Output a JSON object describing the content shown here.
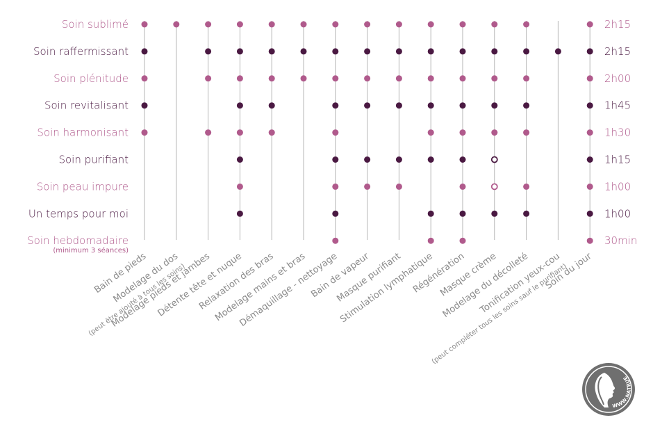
{
  "colors": {
    "pink": "#b05a8c",
    "dark": "#4a1942",
    "line": "#b4b4b4",
    "grey_text": "#8a8a8a",
    "logo_bg": "#6f6f6f"
  },
  "logo": {
    "text": "WWW.NATRUE.ORG",
    "icon": "woman-profile-icon"
  },
  "chart_data": {
    "type": "dot-matrix",
    "columns": [
      {
        "label": "Bain de pieds",
        "note": ""
      },
      {
        "label": "Modelage du dos",
        "note": "(peut être ajouté à tous les soins)"
      },
      {
        "label": "Modelage pieds et jambes",
        "note": ""
      },
      {
        "label": "Détente tête et nuque",
        "note": ""
      },
      {
        "label": "Relaxation des bras",
        "note": ""
      },
      {
        "label": "Modelage mains et bras",
        "note": ""
      },
      {
        "label": "Démaquillage - nettoyage",
        "note": ""
      },
      {
        "label": "Bain de vapeur",
        "note": ""
      },
      {
        "label": "Masque purifiant",
        "note": ""
      },
      {
        "label": "Stimulation lymphatique",
        "note": ""
      },
      {
        "label": "Régénération",
        "note": ""
      },
      {
        "label": "Masque crème",
        "note": ""
      },
      {
        "label": "Modelage du décolleté",
        "note": ""
      },
      {
        "label": "Tonification yeux-cou",
        "note": "(peut compléter tous les soins sauf le purifiant)"
      },
      {
        "label": "Soin du jour",
        "note": ""
      }
    ],
    "rows": [
      {
        "label": "Soin sublimé",
        "note": "",
        "duration": "2h15",
        "color": "pink",
        "dots": [
          1,
          1,
          1,
          1,
          1,
          1,
          1,
          1,
          1,
          1,
          1,
          1,
          1,
          0,
          1
        ]
      },
      {
        "label": "Soin raffermissant",
        "note": "",
        "duration": "2h15",
        "color": "dark",
        "dots": [
          1,
          0,
          1,
          1,
          1,
          1,
          1,
          1,
          1,
          1,
          1,
          1,
          1,
          1,
          1
        ]
      },
      {
        "label": "Soin plénitude",
        "note": "",
        "duration": "2h00",
        "color": "pink",
        "dots": [
          1,
          0,
          1,
          1,
          1,
          1,
          1,
          1,
          1,
          1,
          1,
          1,
          1,
          0,
          1
        ]
      },
      {
        "label": "Soin revitalisant",
        "note": "",
        "duration": "1h45",
        "color": "dark",
        "dots": [
          1,
          0,
          0,
          1,
          1,
          0,
          1,
          1,
          1,
          1,
          1,
          1,
          1,
          0,
          1
        ]
      },
      {
        "label": "Soin harmonisant",
        "note": "",
        "duration": "1h30",
        "color": "pink",
        "dots": [
          1,
          0,
          1,
          1,
          1,
          0,
          1,
          0,
          0,
          1,
          1,
          1,
          1,
          0,
          1
        ]
      },
      {
        "label": "Soin purifiant",
        "note": "",
        "duration": "1h15",
        "color": "dark",
        "dots": [
          0,
          0,
          0,
          1,
          0,
          0,
          1,
          1,
          1,
          1,
          1,
          2,
          0,
          0,
          1
        ]
      },
      {
        "label": "Soin peau impure",
        "note": "",
        "duration": "1h00",
        "color": "pink",
        "dots": [
          0,
          0,
          0,
          1,
          0,
          0,
          1,
          1,
          1,
          0,
          1,
          2,
          1,
          0,
          1
        ]
      },
      {
        "label": "Un temps pour moi",
        "note": "",
        "duration": "1h00",
        "color": "dark",
        "dots": [
          0,
          0,
          0,
          1,
          0,
          0,
          1,
          0,
          0,
          1,
          1,
          1,
          1,
          0,
          1
        ]
      },
      {
        "label": "Soin hebdomadaire",
        "note": "(minimum 3 séances)",
        "duration": "30min",
        "color": "pink",
        "dots": [
          0,
          0,
          0,
          0,
          0,
          0,
          1,
          0,
          0,
          1,
          1,
          0,
          0,
          0,
          1
        ]
      }
    ]
  }
}
